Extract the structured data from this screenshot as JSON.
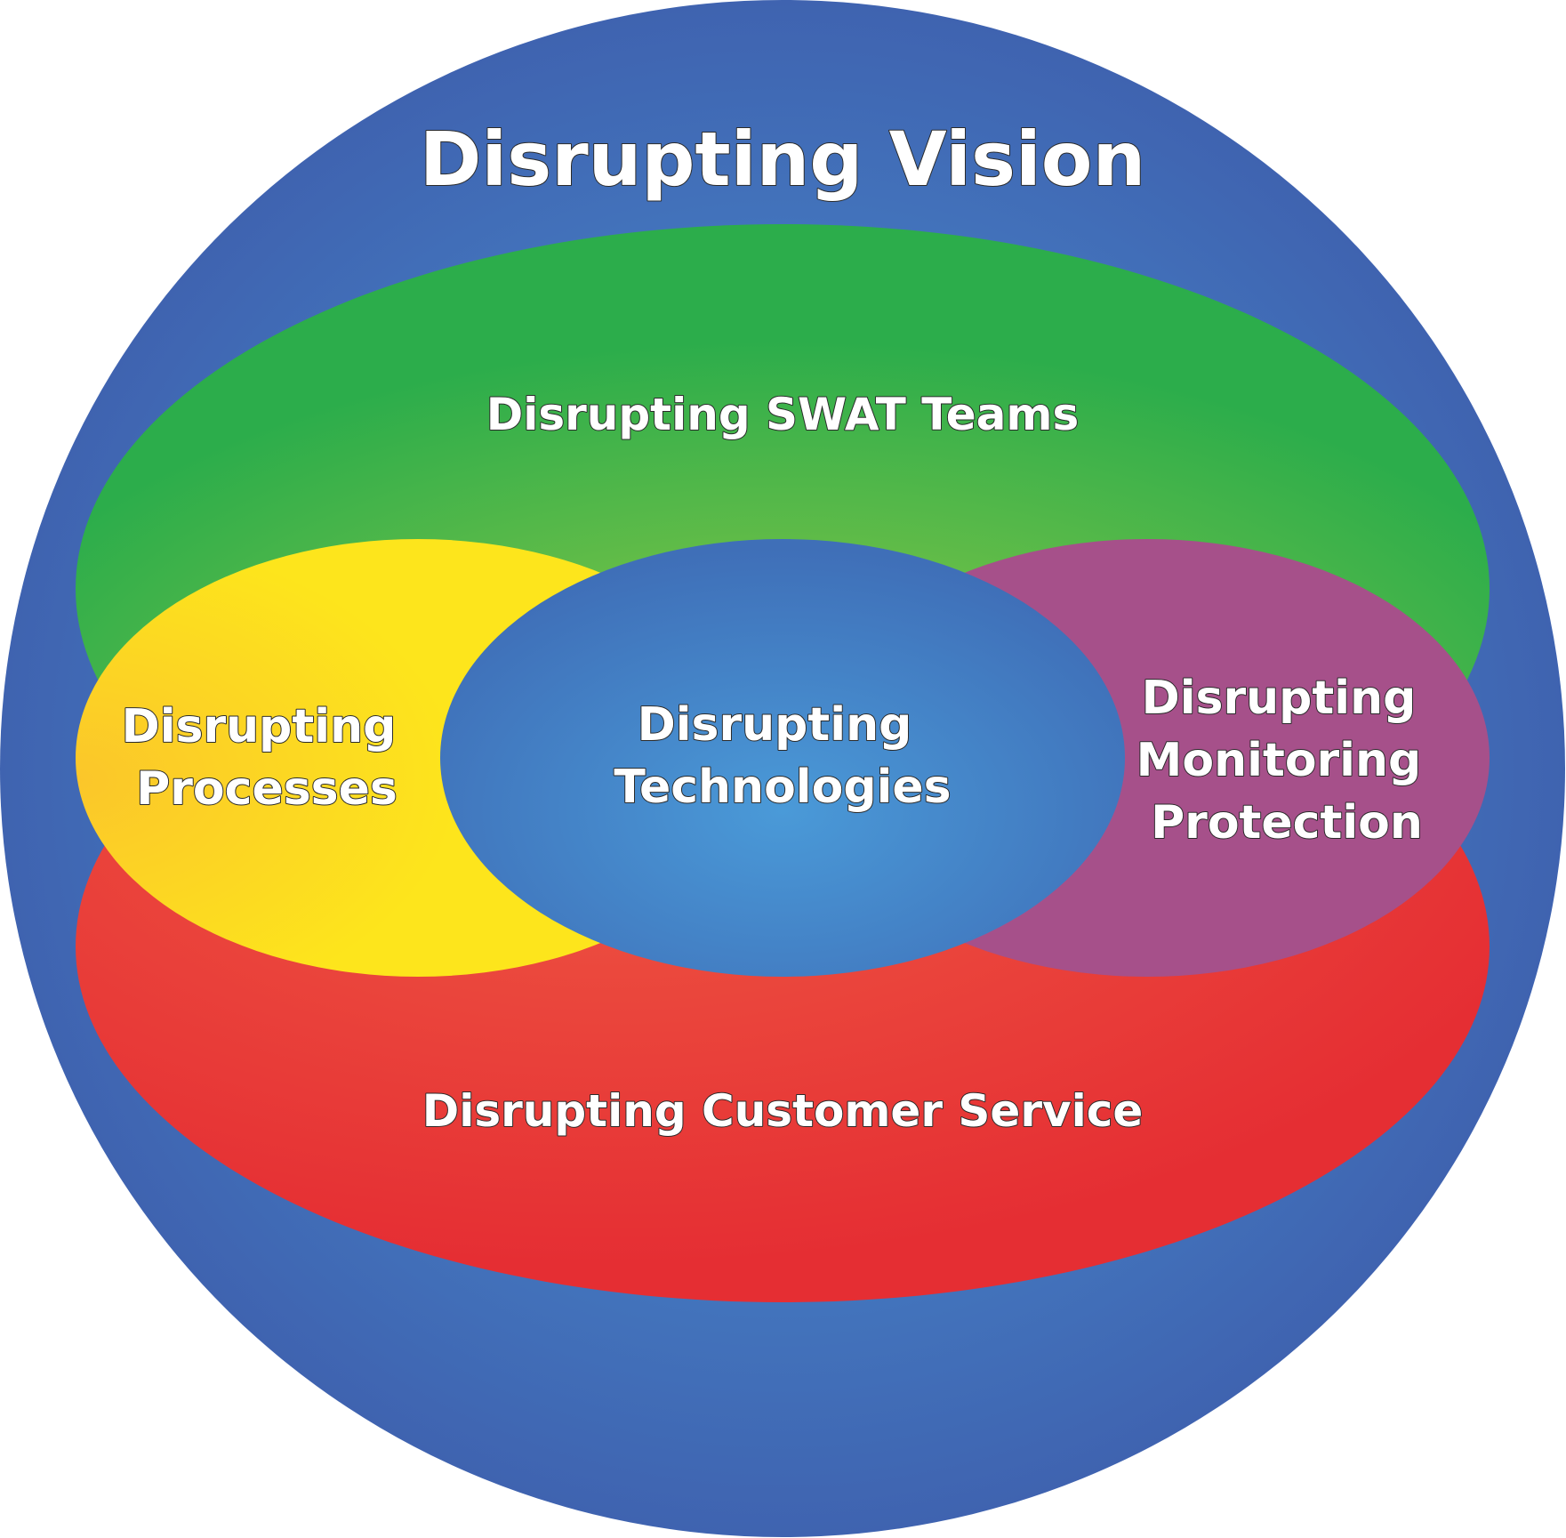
{
  "diagram": {
    "outer": {
      "label": "Disrupting Vision",
      "color": "#3f63b0",
      "glow": "#4a9ad8"
    },
    "top": {
      "label": "Disrupting SWAT Teams",
      "color": "#2cad4b",
      "glow": "#9fcd45"
    },
    "bottom": {
      "label": "Disrupting Customer Service",
      "color": "#e52e33",
      "glow": "#ef5a44"
    },
    "left": {
      "lines": [
        "Disrupting",
        "Processes"
      ],
      "color": "#fde51c",
      "glow": "#fbc62a"
    },
    "center": {
      "lines": [
        "Disrupting",
        "Technologies"
      ],
      "color": "#3f6fb8",
      "glow": "#4a9ad8"
    },
    "right": {
      "lines": [
        "Disrupting",
        "Monitoring",
        "Protection"
      ],
      "color": "#a6508a"
    }
  }
}
